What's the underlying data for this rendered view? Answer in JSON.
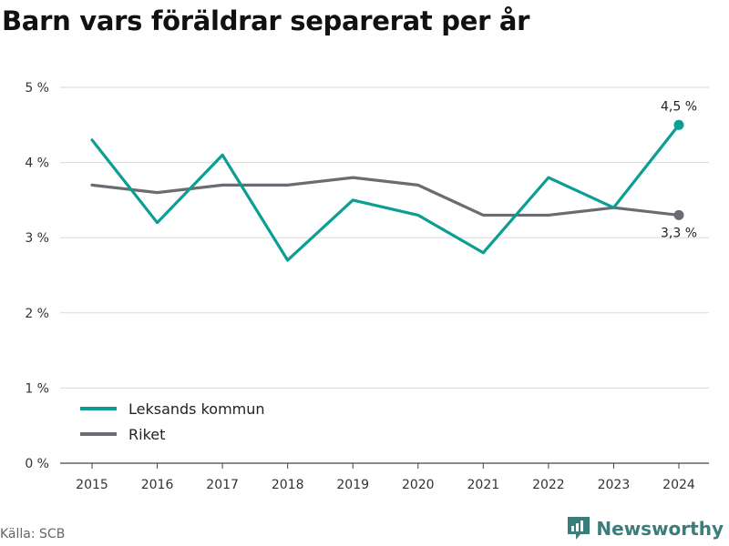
{
  "title": "Barn vars föräldrar separerat per år",
  "source": "Källa: SCB",
  "brand": {
    "name": "Newsworthy",
    "icon": "newsworthy-logo-icon",
    "color": "#3a7d7a"
  },
  "chart_data": {
    "type": "line",
    "title": "Barn vars föräldrar separerat per år",
    "categories": [
      "2015",
      "2016",
      "2017",
      "2018",
      "2019",
      "2020",
      "2021",
      "2022",
      "2023",
      "2024"
    ],
    "series": [
      {
        "name": "Leksands kommun",
        "color": "#0b9e94",
        "values": [
          4.3,
          3.2,
          4.1,
          2.7,
          3.5,
          3.3,
          2.8,
          3.8,
          3.4,
          4.5
        ],
        "end_label": "4,5 %"
      },
      {
        "name": "Riket",
        "color": "#6b6b73",
        "values": [
          3.7,
          3.6,
          3.7,
          3.7,
          3.8,
          3.7,
          3.3,
          3.3,
          3.4,
          3.3
        ],
        "end_label": "3,3 %"
      }
    ],
    "ylim": [
      0,
      5
    ],
    "yticks": [
      0,
      1,
      2,
      3,
      4,
      5
    ],
    "ytick_labels": [
      "0 %",
      "1 %",
      "2 %",
      "3 %",
      "4 %",
      "5 %"
    ],
    "xlabel": "",
    "ylabel": "",
    "grid": true,
    "legend": "bottom-left"
  }
}
